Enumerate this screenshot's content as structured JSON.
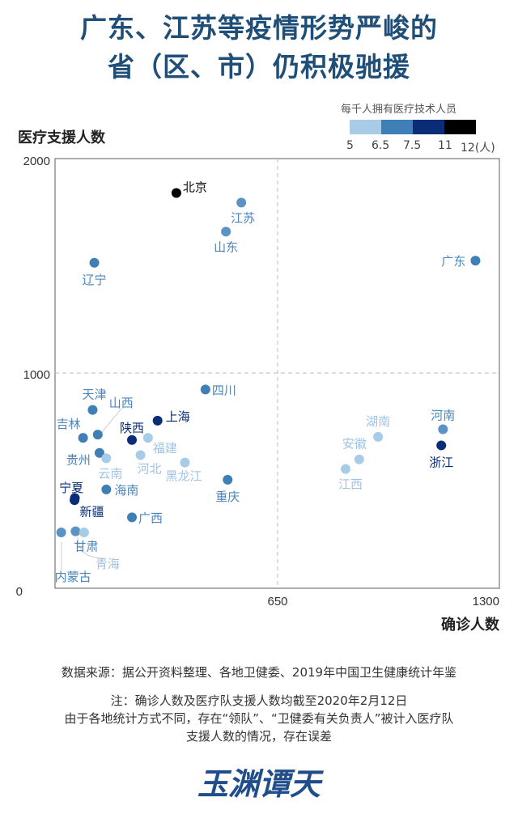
{
  "header": {
    "title_line1": "广东、江苏等疫情形势严峻的",
    "title_line2": "省（区、市）仍积极驰援"
  },
  "legend": {
    "title": "每千人拥有医疗技术人员",
    "ticks": [
      "5",
      "6.5",
      "7.5",
      "11",
      "12(人)"
    ],
    "colors": [
      "#a8cbe8",
      "#3f7fb5",
      "#0a2d77",
      "#000000"
    ]
  },
  "chart_data": {
    "type": "scatter",
    "title": "广东、江苏等疫情形势严峻的省（区、市）仍积极驰援",
    "xlabel": "确诊人数",
    "ylabel": "医疗支援人数",
    "xlim": [
      0,
      1300
    ],
    "ylim": [
      0,
      2000
    ],
    "xticks": [
      "650",
      "1300"
    ],
    "yticks": [
      "0",
      "1000",
      "2000"
    ],
    "grid": "dashed reference lines at x=650 and y=1000",
    "color_legend": "每千人拥有医疗技术人员 (5 / 6.5 / 7.5 / 11 / 12人)",
    "points": [
      {
        "name": "北京",
        "x": 355,
        "y": 1840,
        "tier": 4,
        "color": "#000000"
      },
      {
        "name": "江苏",
        "x": 545,
        "y": 1795,
        "tier": 2,
        "color": "#5b93c4"
      },
      {
        "name": "山东",
        "x": 500,
        "y": 1660,
        "tier": 2,
        "color": "#5b93c4"
      },
      {
        "name": "辽宁",
        "x": 115,
        "y": 1515,
        "tier": 2,
        "color": "#3f7fb5"
      },
      {
        "name": "广东",
        "x": 1230,
        "y": 1525,
        "tier": 2,
        "color": "#3f7fb5"
      },
      {
        "name": "四川",
        "x": 440,
        "y": 925,
        "tier": 2,
        "color": "#3f7fb5"
      },
      {
        "name": "天津",
        "x": 110,
        "y": 830,
        "tier": 2,
        "color": "#3f7fb5"
      },
      {
        "name": "山西",
        "x": 125,
        "y": 715,
        "tier": 2,
        "color": "#3f7fb5"
      },
      {
        "name": "吉林",
        "x": 82,
        "y": 700,
        "tier": 2,
        "color": "#3f7fb5"
      },
      {
        "name": "陕西",
        "x": 225,
        "y": 690,
        "tier": 3,
        "color": "#0a2d77"
      },
      {
        "name": "上海",
        "x": 300,
        "y": 780,
        "tier": 3,
        "color": "#0a2d77"
      },
      {
        "name": "福建",
        "x": 272,
        "y": 700,
        "tier": 1,
        "color": "#a8cbe8"
      },
      {
        "name": "贵州",
        "x": 130,
        "y": 630,
        "tier": 2,
        "color": "#3f7fb5"
      },
      {
        "name": "云南",
        "x": 150,
        "y": 605,
        "tier": 1,
        "color": "#a8cbe8"
      },
      {
        "name": "河北",
        "x": 250,
        "y": 620,
        "tier": 1,
        "color": "#a8cbe8"
      },
      {
        "name": "黑龙江",
        "x": 380,
        "y": 585,
        "tier": 1,
        "color": "#a8cbe8"
      },
      {
        "name": "重庆",
        "x": 505,
        "y": 505,
        "tier": 2,
        "color": "#3f7fb5"
      },
      {
        "name": "宁夏",
        "x": 57,
        "y": 410,
        "tier": 3,
        "color": "#0a2d77"
      },
      {
        "name": "海南",
        "x": 150,
        "y": 460,
        "tier": 2,
        "color": "#3f7fb5"
      },
      {
        "name": "新疆",
        "x": 58,
        "y": 420,
        "tier": 3,
        "color": "#0a2d77"
      },
      {
        "name": "广西",
        "x": 225,
        "y": 330,
        "tier": 2,
        "color": "#3f7fb5"
      },
      {
        "name": "内蒙古",
        "x": 18,
        "y": 260,
        "tier": 2,
        "color": "#5b93c4"
      },
      {
        "name": "甘肃",
        "x": 60,
        "y": 265,
        "tier": 2,
        "color": "#5b93c4"
      },
      {
        "name": "青海",
        "x": 85,
        "y": 260,
        "tier": 1,
        "color": "#a8cbe8"
      },
      {
        "name": "湖南",
        "x": 945,
        "y": 705,
        "tier": 1,
        "color": "#a8cbe8"
      },
      {
        "name": "安徽",
        "x": 890,
        "y": 600,
        "tier": 1,
        "color": "#a8cbe8"
      },
      {
        "name": "江西",
        "x": 850,
        "y": 555,
        "tier": 1,
        "color": "#a8cbe8"
      },
      {
        "name": "河南",
        "x": 1135,
        "y": 740,
        "tier": 2,
        "color": "#5b93c4"
      },
      {
        "name": "浙江",
        "x": 1130,
        "y": 665,
        "tier": 3,
        "color": "#0a2d77"
      }
    ]
  },
  "footer": {
    "source": "数据来源：据公开资料整理、各地卫健委、2019年中国卫生健康统计年鉴",
    "note_line1": "注：确诊人数及医疗队支援人数均截至2020年2月12日",
    "note_line2": "由于各地统计方式不同，存在“领队”、“卫健委有关负责人”被计入医疗队",
    "note_line3": "支援人数的情况，存在误差"
  },
  "logo": {
    "text": "玉渊谭天",
    "color": "#1f4e8a"
  }
}
